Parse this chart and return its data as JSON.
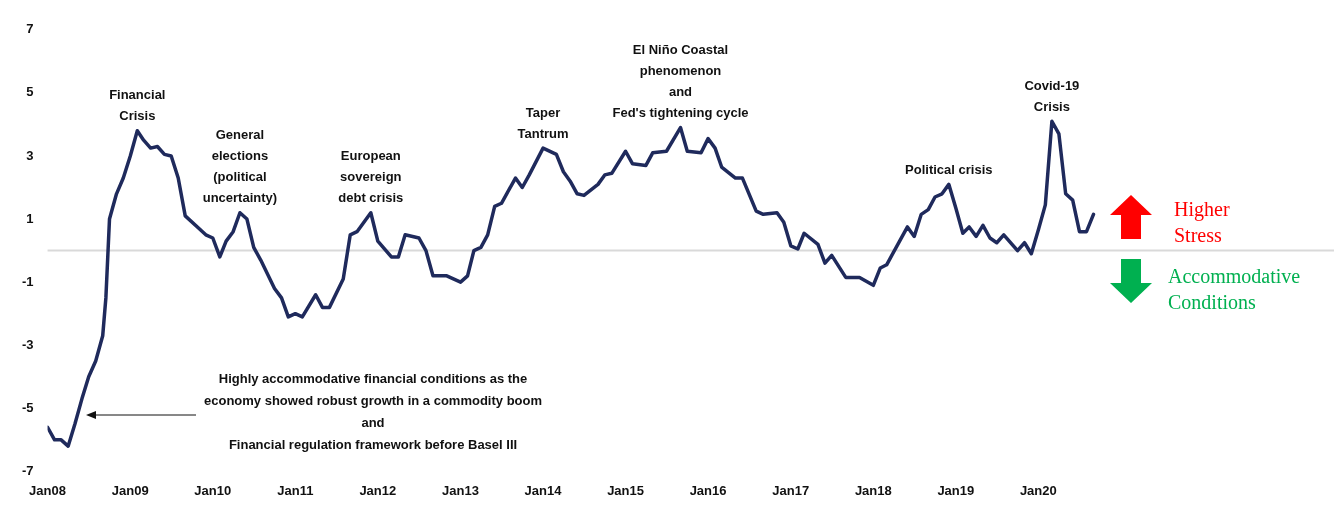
{
  "chart_data": {
    "type": "line",
    "x": [
      "2008-01",
      "2008-02",
      "2008-03",
      "2008-04",
      "2008-05",
      "2008-06",
      "2008-07",
      "2008-08",
      "2008-09",
      "2008-09-15",
      "2008-10",
      "2008-11",
      "2008-12",
      "2009-01",
      "2009-02",
      "2009-03",
      "2009-04",
      "2009-05",
      "2009-06",
      "2009-07",
      "2009-08",
      "2009-09",
      "2009-11",
      "2009-12",
      "2010-01",
      "2010-02",
      "2010-03",
      "2010-04",
      "2010-05",
      "2010-06",
      "2010-07",
      "2010-08",
      "2010-10",
      "2010-11",
      "2010-12",
      "2011-01",
      "2011-02",
      "2011-04",
      "2011-05",
      "2011-06",
      "2011-08",
      "2011-09",
      "2011-10",
      "2011-12",
      "2012-01",
      "2012-03",
      "2012-04",
      "2012-05",
      "2012-07",
      "2012-08",
      "2012-09",
      "2012-11",
      "2013-01",
      "2013-02",
      "2013-03",
      "2013-04",
      "2013-05",
      "2013-06",
      "2013-07",
      "2013-09",
      "2013-10",
      "2013-11",
      "2014-01",
      "2014-03",
      "2014-04",
      "2014-05",
      "2014-06",
      "2014-07",
      "2014-09",
      "2014-10",
      "2014-11",
      "2015-01",
      "2015-02",
      "2015-04",
      "2015-05",
      "2015-07",
      "2015-09",
      "2015-10",
      "2015-12",
      "2016-01",
      "2016-02",
      "2016-03",
      "2016-05",
      "2016-06",
      "2016-08",
      "2016-09",
      "2016-11",
      "2016-12",
      "2017-01",
      "2017-02",
      "2017-03",
      "2017-05",
      "2017-06",
      "2017-07",
      "2017-09",
      "2017-11",
      "2018-01",
      "2018-02",
      "2018-03",
      "2018-05",
      "2018-06",
      "2018-07",
      "2018-08",
      "2018-09",
      "2018-10",
      "2018-11",
      "2018-12",
      "2019-01",
      "2019-02",
      "2019-03",
      "2019-04",
      "2019-05",
      "2019-06",
      "2019-07",
      "2019-08",
      "2019-10",
      "2019-11",
      "2019-12",
      "2020-01",
      "2020-02",
      "2020-03",
      "2020-04",
      "2020-05",
      "2020-06",
      "2020-07",
      "2020-08",
      "2020-09"
    ],
    "series": [
      {
        "color": "#1f2a5c",
        "values": [
          -5.6,
          -6.0,
          -6.0,
          -6.2,
          -5.5,
          -4.7,
          -4.0,
          -3.5,
          -2.7,
          -1.5,
          1.0,
          1.8,
          2.3,
          3.0,
          3.8,
          3.5,
          3.25,
          3.3,
          3.05,
          3.0,
          2.3,
          1.1,
          0.7,
          0.5,
          0.4,
          -0.2,
          0.3,
          0.6,
          1.2,
          1.0,
          0.1,
          -0.3,
          -1.2,
          -1.5,
          -2.1,
          -2.0,
          -2.1,
          -1.4,
          -1.8,
          -1.8,
          -0.9,
          0.5,
          0.6,
          1.2,
          0.3,
          -0.2,
          -0.2,
          0.5,
          0.4,
          0.0,
          -0.8,
          -0.8,
          -1.0,
          -0.8,
          0.0,
          0.1,
          0.5,
          1.4,
          1.5,
          2.3,
          2.0,
          2.4,
          3.25,
          3.05,
          2.5,
          2.2,
          1.8,
          1.75,
          2.1,
          2.4,
          2.45,
          3.15,
          2.75,
          2.7,
          3.1,
          3.15,
          3.9,
          3.15,
          3.1,
          3.55,
          3.25,
          2.65,
          2.3,
          2.3,
          1.25,
          1.15,
          1.2,
          0.9,
          0.15,
          0.05,
          0.55,
          0.2,
          -0.4,
          -0.15,
          -0.85,
          -0.85,
          -1.1,
          -0.55,
          -0.45,
          0.35,
          0.75,
          0.45,
          1.15,
          1.3,
          1.7,
          1.8,
          2.1,
          1.35,
          0.55,
          0.75,
          0.45,
          0.8,
          0.4,
          0.25,
          0.5,
          0.0,
          0.25,
          -0.1,
          0.65,
          1.45,
          4.1,
          3.7,
          1.8,
          1.6,
          0.6,
          0.6,
          1.15
        ]
      }
    ],
    "xlim": [
      "2008-01",
      "2023-08"
    ],
    "xticks": [
      {
        "value": "2008-01",
        "label": "Jan08"
      },
      {
        "value": "2009-01",
        "label": "Jan09"
      },
      {
        "value": "2010-01",
        "label": "Jan10"
      },
      {
        "value": "2011-01",
        "label": "Jan11"
      },
      {
        "value": "2012-01",
        "label": "Jan12"
      },
      {
        "value": "2013-01",
        "label": "Jan13"
      },
      {
        "value": "2014-01",
        "label": "Jan14"
      },
      {
        "value": "2015-01",
        "label": "Jan15"
      },
      {
        "value": "2016-01",
        "label": "Jan16"
      },
      {
        "value": "2017-01",
        "label": "Jan17"
      },
      {
        "value": "2018-01",
        "label": "Jan18"
      },
      {
        "value": "2019-01",
        "label": "Jan19"
      },
      {
        "value": "2020-01",
        "label": "Jan20"
      }
    ],
    "ylim": [
      -7,
      7
    ],
    "yticks": [
      -7,
      -5,
      -3,
      -1,
      1,
      3,
      5,
      7
    ],
    "grid": false,
    "legend": false,
    "marker": "none",
    "line_style": "solid",
    "ref_lines": [
      {
        "axis": "y",
        "value": 0,
        "color": "#d9d9d9"
      }
    ],
    "annotations": [
      {
        "text": "Financial\nCrisis",
        "x": "2009-02",
        "y": 3.8
      },
      {
        "text": "General\nelections\n(political\nuncertainty)",
        "x": "2010-05",
        "y": 1.2
      },
      {
        "text": "European\nsovereign\ndebt crisis",
        "x": "2011-12",
        "y": 1.2
      },
      {
        "text": "Taper\nTantrum",
        "x": "2014-01",
        "y": 3.25
      },
      {
        "text": "El Niño Coastal\nphenomenon\nand\nFed's tightening cycle",
        "x": "2015-09",
        "y": 3.9
      },
      {
        "text": "Political crisis",
        "x": "2018-12",
        "y": 2.1
      },
      {
        "text": "Covid-19\nCrisis",
        "x": "2020-03",
        "y": 4.1
      },
      "Highly accommodative financial conditions as the\neconomy showed robust growth in a commodity boom\nand\nFinancial regulation framework before Basel III",
      "Higher\nStress",
      "Accommodative\nConditions"
    ]
  }
}
